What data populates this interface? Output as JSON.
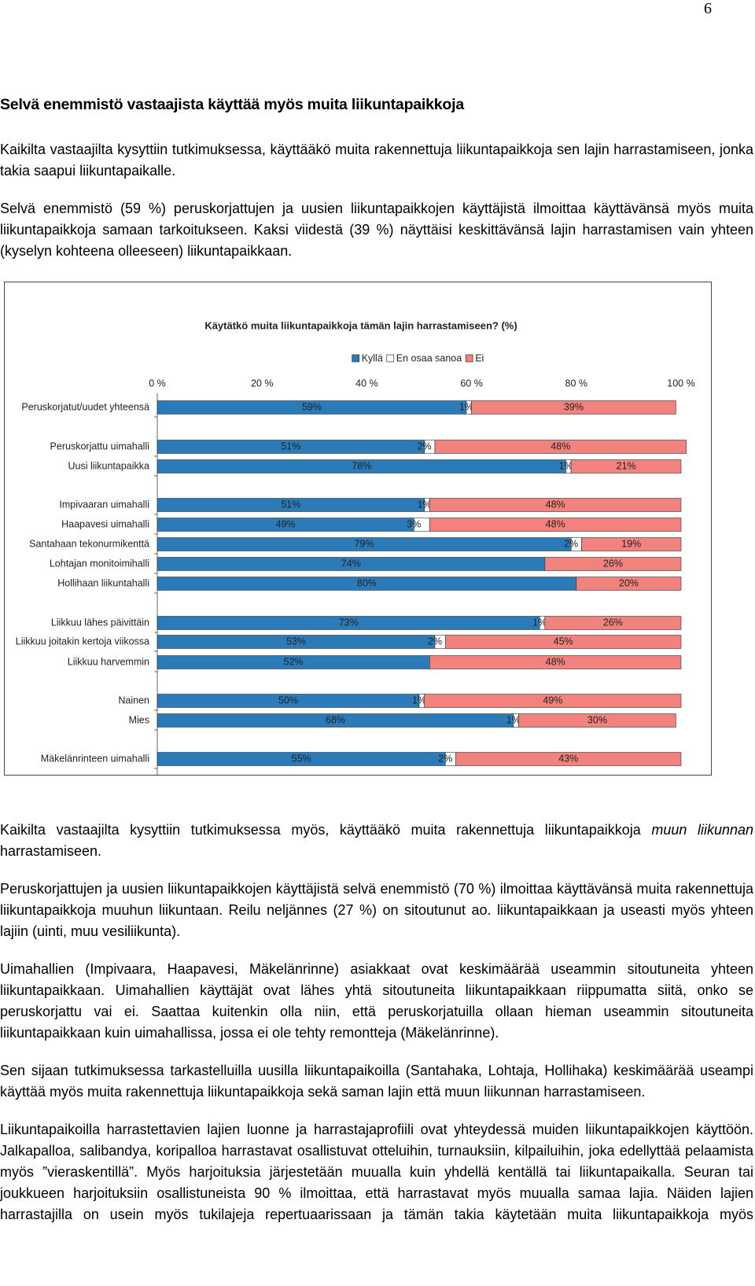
{
  "page_number": "6",
  "heading": "Selvä enemmistö vastaajista käyttää myös muita liikuntapaikkoja",
  "paragraphs_before": [
    "Kaikilta vastaajilta kysyttiin tutkimuksessa, käyttääkö muita rakennettuja liikuntapaikkoja sen lajin harrastamiseen, jonka takia saapui liikuntapaikalle.",
    "Selvä enemmistö (59 %) peruskorjattujen ja uusien liikuntapaikkojen käyttäjistä ilmoittaa käyttävänsä myös muita liikuntapaikkoja samaan tarkoitukseen. Kaksi viidestä (39 %) näyttäisi keskittävänsä lajin harrastamisen vain yhteen (kyselyn kohteena olleeseen) liikuntapaikkaan."
  ],
  "chart_data": {
    "type": "stacked-bar-horizontal",
    "title": "Käytätkö muita liikuntapaikkoja tämän lajin harrastamiseen? (%)",
    "categories": [
      "Peruskorjatut/uudet yhteensä",
      "Peruskorjattu uimahalli",
      "Uusi liikuntapaikka",
      "Impivaaran uimahalli",
      "Haapavesi uimahalli",
      "Santahaan tekonurmikenttä",
      "Lohtajan monitoimihalli",
      "Hollihaan liikuntahalli",
      "Liikkuu lähes päivittäin",
      "Liikkuu joitakin kertoja viikossa",
      "Liikkuu harvemmin",
      "Nainen",
      "Mies",
      "Mäkelänrinteen uimahalli"
    ],
    "series": [
      {
        "name": "Kyllä",
        "color": "#2b7bb9",
        "values": [
          59,
          51,
          78,
          51,
          49,
          79,
          74,
          80,
          73,
          53,
          52,
          50,
          68,
          55
        ],
        "value_labels": [
          "59%",
          "51%",
          "78%",
          "51%",
          "49%",
          "79%",
          "74%",
          "80%",
          "73%",
          "53%",
          "52%",
          "50%",
          "68%",
          "55%"
        ]
      },
      {
        "name": "En osaa sanoa",
        "color": "#ffffff",
        "values": [
          1,
          2,
          1,
          1,
          3,
          2,
          0,
          0,
          1,
          2,
          0,
          1,
          1,
          2
        ],
        "value_labels": [
          "1%",
          "2%",
          "1%",
          "1%",
          "3%",
          "2%",
          null,
          null,
          "1%",
          "2%",
          null,
          "1%",
          "1%",
          "2%"
        ]
      },
      {
        "name": "Ei",
        "color": "#f2827e",
        "values": [
          39,
          48,
          21,
          48,
          48,
          19,
          26,
          20,
          26,
          45,
          48,
          49,
          30,
          43
        ],
        "value_labels": [
          "39%",
          "48%",
          "21%",
          "48%",
          "48%",
          "19%",
          "26%",
          "20%",
          "26%",
          "45%",
          "48%",
          "49%",
          "30%",
          "43%"
        ]
      }
    ],
    "xlim": [
      0,
      100
    ],
    "xticks": [
      {
        "value": 0,
        "label": "0 %"
      },
      {
        "value": 20,
        "label": "20 %"
      },
      {
        "value": 40,
        "label": "40 %"
      },
      {
        "value": 60,
        "label": "60 %"
      },
      {
        "value": 80,
        "label": "80 %"
      },
      {
        "value": 100,
        "label": "100 %"
      }
    ]
  },
  "paragraphs_after": [
    {
      "before": "Kaikilta vastaajilta kysyttiin tutkimuksessa myös, käyttääkö muita rakennettuja liikuntapaikkoja",
      "italic": "muun liikunnan",
      "after": "harrastamiseen."
    },
    "Peruskorjattujen ja uusien liikuntapaikkojen käyttäjistä selvä enemmistö (70 %) ilmoittaa käyttävänsä muita rakennettuja liikuntapaikkoja muuhun liikuntaan. Reilu neljännes (27 %) on sitoutunut ao. liikuntapaikkaan ja useasti myös yhteen lajiin (uinti, muu vesiliikunta).",
    "Uimahallien (Impivaara, Haapavesi, Mäkelänrinne) asiakkaat ovat keskimäärää useammin sitoutuneita yhteen liikuntapaikkaan. Uimahallien käyttäjät ovat lähes yhtä sitoutuneita liikuntapaikkaan riippumatta siitä, onko se peruskorjattu vai ei. Saattaa kuitenkin olla niin, että peruskorjatuilla ollaan hieman useammin sitoutuneita liikuntapaikkaan kuin uimahallissa, jossa ei ole tehty remontteja (Mäkelänrinne).",
    "Sen sijaan tutkimuksessa tarkastelluilla uusilla liikuntapaikoilla (Santahaka, Lohtaja, Hollihaka) keskimäärää useampi käyttää myös muita rakennettuja liikuntapaikkoja sekä saman lajin että muun liikunnan harrastamiseen.",
    "Liikuntapaikoilla harrastettavien lajien luonne ja harrastajaprofiili ovat yhteydessä muiden liikuntapaikkojen käyttöön. Jalkapalloa, salibandya, koripalloa harrastavat osallistuvat otteluihin, turnauksiin, kilpailuihin, joka edellyttää pelaamista myös ”vieraskentillä”. Myös harjoituksia järjestetään muualla kuin yhdellä kentällä tai liikuntapaikalla. Seuran tai joukkueen harjoituksiin osallistuneista 90 % ilmoittaa, että harrastavat myös muualla samaa lajia. Näiden lajien harrastajilla on usein myös tukilajeja repertuaarissaan ja tämän takia käytetään muita liikuntapaikkoja myös"
  ]
}
